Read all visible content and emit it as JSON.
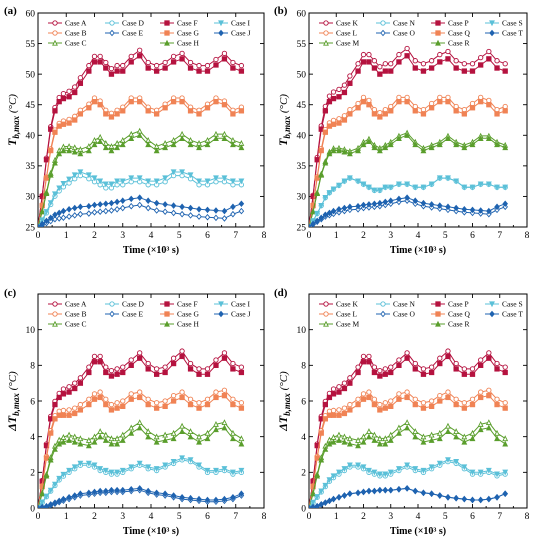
{
  "chart_data": [
    {
      "panel": "(a)",
      "type": "line",
      "xlabel": "Time (×10³ s)",
      "ylabel": {
        "main": "T",
        "sub": "b,max",
        "unit": " (°C)"
      },
      "xlim": [
        0,
        8
      ],
      "ylim": [
        25,
        60
      ],
      "xticks": [
        0,
        1,
        2,
        3,
        4,
        5,
        6,
        7,
        8
      ],
      "yticks": [
        25,
        30,
        35,
        40,
        45,
        50,
        55,
        60
      ],
      "legend_cols": [
        [
          {
            "name": "Case A",
            "group": "F",
            "marker": "circle-open"
          },
          {
            "name": "Case B",
            "group": "G",
            "marker": "circle-open"
          },
          {
            "name": "Case C",
            "group": "H",
            "marker": "triangle-open"
          }
        ],
        [
          {
            "name": "Case D",
            "group": "I",
            "marker": "circle-open"
          },
          {
            "name": "Case E",
            "group": "J",
            "marker": "diamond-open"
          }
        ],
        [
          {
            "name": "Case F",
            "group": "F",
            "marker": "square-filled"
          },
          {
            "name": "Case G",
            "group": "G",
            "marker": "square-filled"
          },
          {
            "name": "Case H",
            "group": "H",
            "marker": "triangle-filled"
          }
        ],
        [
          {
            "name": "Case I",
            "group": "I",
            "marker": "triangle-down-filled"
          },
          {
            "name": "Case J",
            "group": "J",
            "marker": "diamond-filled"
          }
        ]
      ],
      "series": [
        {
          "name": "Case A",
          "group": "F",
          "marker": "circle-open",
          "offset": 0.9
        },
        {
          "name": "Case F",
          "group": "F",
          "marker": "square-filled",
          "offset": 0
        },
        {
          "name": "Case B",
          "group": "G",
          "marker": "circle-open",
          "offset": 0.6
        },
        {
          "name": "Case G",
          "group": "G",
          "marker": "square-filled",
          "offset": 0
        },
        {
          "name": "Case C",
          "group": "H",
          "marker": "triangle-open",
          "offset": 0.7
        },
        {
          "name": "Case H",
          "group": "H",
          "marker": "triangle-filled",
          "offset": 0
        },
        {
          "name": "Case D",
          "group": "I",
          "marker": "circle-open",
          "offset": 0.4
        },
        {
          "name": "Case I",
          "group": "I",
          "marker": "triangle-down-filled",
          "offset": 1.0
        },
        {
          "name": "Case E",
          "group": "J",
          "marker": "diamond-open",
          "offset": -1.2
        },
        {
          "name": "Case J",
          "group": "J",
          "marker": "diamond-filled",
          "offset": 0
        }
      ]
    },
    {
      "panel": "(b)",
      "type": "line",
      "xlabel": "Time (×10³ s)",
      "ylabel": {
        "main": "T",
        "sub": "b,max",
        "unit": " (°C)"
      },
      "xlim": [
        0,
        8
      ],
      "ylim": [
        25,
        60
      ],
      "xticks": [
        0,
        1,
        2,
        3,
        4,
        5,
        6,
        7,
        8
      ],
      "yticks": [
        25,
        30,
        35,
        40,
        45,
        50,
        55,
        60
      ],
      "legend_cols": [
        [
          {
            "name": "Case K",
            "group": "F",
            "marker": "circle-open"
          },
          {
            "name": "Case L",
            "group": "G",
            "marker": "circle-open"
          },
          {
            "name": "Case M",
            "group": "H",
            "marker": "triangle-open"
          }
        ],
        [
          {
            "name": "Case N",
            "group": "I",
            "marker": "circle-open"
          },
          {
            "name": "Case O",
            "group": "J",
            "marker": "diamond-open"
          }
        ],
        [
          {
            "name": "Case P",
            "group": "F",
            "marker": "square-filled"
          },
          {
            "name": "Case Q",
            "group": "G",
            "marker": "square-filled"
          },
          {
            "name": "Case R",
            "group": "H",
            "marker": "triangle-filled"
          }
        ],
        [
          {
            "name": "Case S",
            "group": "I",
            "marker": "triangle-down-filled"
          },
          {
            "name": "Case T",
            "group": "J",
            "marker": "diamond-filled"
          }
        ]
      ],
      "series": [
        {
          "name": "Case K",
          "group": "F",
          "marker": "circle-open",
          "offset": 1.2
        },
        {
          "name": "Case P",
          "group": "F",
          "marker": "square-filled",
          "offset": 0
        },
        {
          "name": "Case L",
          "group": "G",
          "marker": "circle-open",
          "offset": 0.7
        },
        {
          "name": "Case Q",
          "group": "G",
          "marker": "square-filled",
          "offset": 0
        },
        {
          "name": "Case M",
          "group": "H",
          "marker": "triangle-open",
          "offset": 0.4
        },
        {
          "name": "Case R",
          "group": "H",
          "marker": "triangle-filled",
          "offset": 0
        },
        {
          "name": "Case N",
          "group": "I",
          "marker": "circle-open",
          "offset": 0
        },
        {
          "name": "Case S",
          "group": "I",
          "marker": "triangle-down-filled",
          "offset": 0
        },
        {
          "name": "Case O",
          "group": "J",
          "marker": "diamond-open",
          "offset": -0.5
        },
        {
          "name": "Case T",
          "group": "J",
          "marker": "diamond-filled",
          "offset": 0
        }
      ]
    },
    {
      "panel": "(c)",
      "type": "line",
      "xlabel": "Time (×10³ s)",
      "ylabel": {
        "main": "ΔT",
        "sub": "b,max",
        "unit": " (°C)"
      },
      "xlim": [
        0,
        8
      ],
      "ylim": [
        0,
        12
      ],
      "xticks": [
        0,
        1,
        2,
        3,
        4,
        5,
        6,
        7,
        8
      ],
      "yticks": [
        0,
        2,
        4,
        6,
        8,
        10
      ],
      "legend_cols": [
        [
          {
            "name": "Case A",
            "group": "F",
            "marker": "circle-open"
          },
          {
            "name": "Case B",
            "group": "G",
            "marker": "circle-open"
          },
          {
            "name": "Case C",
            "group": "H",
            "marker": "triangle-open"
          }
        ],
        [
          {
            "name": "Case D",
            "group": "I",
            "marker": "circle-open"
          },
          {
            "name": "Case E",
            "group": "J",
            "marker": "diamond-open"
          }
        ],
        [
          {
            "name": "Case F",
            "group": "F",
            "marker": "square-filled"
          },
          {
            "name": "Case G",
            "group": "G",
            "marker": "square-filled"
          },
          {
            "name": "Case H",
            "group": "H",
            "marker": "triangle-filled"
          }
        ],
        [
          {
            "name": "Case I",
            "group": "I",
            "marker": "triangle-down-filled"
          },
          {
            "name": "Case J",
            "group": "J",
            "marker": "diamond-filled"
          }
        ]
      ],
      "series": [
        {
          "name": "Case A",
          "group": "F",
          "marker": "circle-open",
          "offset": 0.3
        },
        {
          "name": "Case F",
          "group": "F",
          "marker": "square-filled",
          "offset": 0
        },
        {
          "name": "Case B",
          "group": "G",
          "marker": "circle-open",
          "offset": 0.3
        },
        {
          "name": "Case G",
          "group": "G",
          "marker": "square-filled",
          "offset": 0
        },
        {
          "name": "Case C",
          "group": "H",
          "marker": "triangle-open",
          "offset": 0.3
        },
        {
          "name": "Case H",
          "group": "H",
          "marker": "triangle-filled",
          "offset": 0
        },
        {
          "name": "Case D",
          "group": "I",
          "marker": "circle-open",
          "offset": 0.1
        },
        {
          "name": "Case I",
          "group": "I",
          "marker": "triangle-down-filled",
          "offset": 0.2
        },
        {
          "name": "Case E",
          "group": "J",
          "marker": "diamond-open",
          "offset": -0.1
        },
        {
          "name": "Case J",
          "group": "J",
          "marker": "diamond-filled",
          "offset": 0
        }
      ]
    },
    {
      "panel": "(d)",
      "type": "line",
      "xlabel": "Time (×10³ s)",
      "ylabel": {
        "main": "ΔT",
        "sub": "b,max",
        "unit": " (°C)"
      },
      "xlim": [
        0,
        8
      ],
      "ylim": [
        0,
        12
      ],
      "xticks": [
        0,
        1,
        2,
        3,
        4,
        5,
        6,
        7,
        8
      ],
      "yticks": [
        0,
        2,
        4,
        6,
        8,
        10
      ],
      "legend_cols": [
        [
          {
            "name": "Case K",
            "group": "F",
            "marker": "circle-open"
          },
          {
            "name": "Case L",
            "group": "G",
            "marker": "circle-open"
          },
          {
            "name": "Case M",
            "group": "H",
            "marker": "triangle-open"
          }
        ],
        [
          {
            "name": "Case N",
            "group": "I",
            "marker": "circle-open"
          },
          {
            "name": "Case O",
            "group": "J",
            "marker": "diamond-open"
          }
        ],
        [
          {
            "name": "Case P",
            "group": "F",
            "marker": "square-filled"
          },
          {
            "name": "Case Q",
            "group": "G",
            "marker": "square-filled"
          },
          {
            "name": "Case R",
            "group": "H",
            "marker": "triangle-filled"
          }
        ],
        [
          {
            "name": "Case S",
            "group": "I",
            "marker": "triangle-down-filled"
          },
          {
            "name": "Case T",
            "group": "J",
            "marker": "diamond-filled"
          }
        ]
      ],
      "series": [
        {
          "name": "Case K",
          "group": "F",
          "marker": "circle-open",
          "offset": 0.3
        },
        {
          "name": "Case P",
          "group": "F",
          "marker": "square-filled",
          "offset": 0
        },
        {
          "name": "Case L",
          "group": "G",
          "marker": "circle-open",
          "offset": 0.3
        },
        {
          "name": "Case Q",
          "group": "G",
          "marker": "square-filled",
          "offset": 0
        },
        {
          "name": "Case M",
          "group": "H",
          "marker": "triangle-open",
          "offset": 0.3
        },
        {
          "name": "Case R",
          "group": "H",
          "marker": "triangle-filled",
          "offset": 0
        },
        {
          "name": "Case N",
          "group": "I",
          "marker": "circle-open",
          "offset": 0
        },
        {
          "name": "Case S",
          "group": "I",
          "marker": "triangle-down-filled",
          "offset": 0.1
        },
        {
          "name": "Case O",
          "group": "J",
          "marker": "diamond-open",
          "offset": 0
        },
        {
          "name": "Case T",
          "group": "J",
          "marker": "diamond-filled",
          "offset": 0
        }
      ]
    }
  ],
  "group_colors": {
    "F": "#b5123f",
    "G": "#f08355",
    "H": "#5a9e2c",
    "I": "#5bc0d8",
    "J": "#1f63b0"
  },
  "base_curves": {
    "temperature": {
      "time": [
        0,
        0.15,
        0.3,
        0.45,
        0.6,
        0.75,
        0.9,
        1.1,
        1.3,
        1.5,
        1.8,
        2.0,
        2.2,
        2.4,
        2.6,
        2.8,
        3.0,
        3.3,
        3.6,
        3.9,
        4.2,
        4.5,
        4.8,
        5.1,
        5.4,
        5.7,
        6.0,
        6.3,
        6.6,
        6.9,
        7.2
      ],
      "F": [
        25,
        30,
        36,
        41,
        44,
        45.5,
        46,
        46.3,
        47,
        48.5,
        50.5,
        52,
        52,
        51,
        50,
        50.5,
        50.5,
        52,
        53,
        51,
        50.5,
        51,
        52,
        52.5,
        51,
        50.5,
        50.5,
        51.5,
        52.5,
        51,
        50.5
      ],
      "G": [
        25,
        28.5,
        33,
        37.5,
        40.5,
        41.5,
        41.8,
        42,
        42.5,
        43.5,
        44.5,
        45.5,
        45,
        43.5,
        43,
        43.5,
        44,
        45.5,
        45.5,
        44,
        43.5,
        44.5,
        45.5,
        45.5,
        44,
        43.5,
        44.5,
        45.5,
        45,
        43.5,
        44
      ],
      "H": [
        25,
        27.5,
        30.5,
        33.5,
        35.5,
        37,
        37.5,
        37.5,
        37.3,
        37,
        37.5,
        38.5,
        39,
        38,
        37.5,
        38,
        38.5,
        39.5,
        40,
        38.5,
        37.5,
        38,
        38.5,
        39.5,
        38.5,
        38,
        38.5,
        39.5,
        39.5,
        38.5,
        38
      ],
      "I": [
        25,
        26,
        27.2,
        28.5,
        29.8,
        30.6,
        31.2,
        31.8,
        32.5,
        33,
        32.5,
        32,
        31.5,
        31,
        31,
        31.5,
        31.5,
        32,
        32,
        31.5,
        31.5,
        32,
        33,
        33,
        32.5,
        31.5,
        31.5,
        32,
        32,
        31.5,
        31.5
      ],
      "J": [
        25,
        25.5,
        26,
        26.5,
        27,
        27.3,
        27.6,
        27.9,
        28.1,
        28.3,
        28.4,
        28.6,
        28.7,
        28.8,
        28.9,
        29.1,
        29.3,
        29.6,
        29.8,
        29.3,
        28.9,
        28.7,
        28.5,
        28.3,
        28.1,
        27.9,
        27.8,
        27.7,
        27.6,
        28.3,
        28.8
      ]
    },
    "delta": {
      "time": [
        0,
        0.15,
        0.3,
        0.45,
        0.6,
        0.75,
        0.9,
        1.1,
        1.3,
        1.5,
        1.8,
        2.0,
        2.2,
        2.4,
        2.6,
        2.8,
        3.0,
        3.3,
        3.6,
        3.9,
        4.2,
        4.5,
        4.8,
        5.1,
        5.4,
        5.7,
        6.0,
        6.3,
        6.6,
        6.9,
        7.2
      ],
      "F": [
        0,
        1.5,
        3.5,
        5,
        5.8,
        6.2,
        6.4,
        6.5,
        6.7,
        7,
        7.6,
        8.2,
        8.2,
        7.6,
        7.4,
        7.5,
        7.6,
        8.0,
        8.4,
        7.8,
        7.5,
        7.6,
        8.1,
        8.5,
        7.8,
        7.5,
        7.5,
        8.0,
        8.4,
        7.8,
        7.6
      ],
      "G": [
        0,
        1.2,
        2.8,
        4.2,
        5.0,
        5.2,
        5.2,
        5.2,
        5.3,
        5.5,
        5.8,
        6.1,
        6.2,
        5.8,
        5.5,
        5.6,
        5.7,
        6.1,
        6.2,
        5.8,
        5.6,
        5.7,
        6.0,
        6.2,
        5.8,
        5.6,
        5.8,
        6.2,
        6.3,
        5.8,
        5.6
      ],
      "H": [
        0,
        0.8,
        1.8,
        2.7,
        3.3,
        3.6,
        3.7,
        3.8,
        3.7,
        3.6,
        3.5,
        3.7,
        4.0,
        3.8,
        3.6,
        3.6,
        3.8,
        4.2,
        4.5,
        4.0,
        3.7,
        3.8,
        3.9,
        4.3,
        4.0,
        3.7,
        3.9,
        4.4,
        4.5,
        3.9,
        3.6
      ],
      "I": [
        0,
        0.3,
        0.6,
        0.9,
        1.2,
        1.5,
        1.7,
        1.9,
        2.1,
        2.3,
        2.3,
        2.2,
        2.0,
        1.9,
        1.8,
        1.8,
        1.9,
        2.1,
        2.3,
        2.1,
        2.0,
        2.2,
        2.4,
        2.6,
        2.5,
        2.2,
        1.9,
        1.9,
        2.0,
        1.8,
        1.9
      ],
      "J": [
        0,
        0.05,
        0.1,
        0.2,
        0.3,
        0.4,
        0.5,
        0.6,
        0.7,
        0.8,
        0.85,
        0.9,
        0.95,
        0.95,
        1.0,
        1.0,
        1.0,
        1.05,
        1.1,
        0.95,
        0.85,
        0.8,
        0.7,
        0.6,
        0.55,
        0.5,
        0.45,
        0.45,
        0.5,
        0.6,
        0.8
      ]
    }
  }
}
